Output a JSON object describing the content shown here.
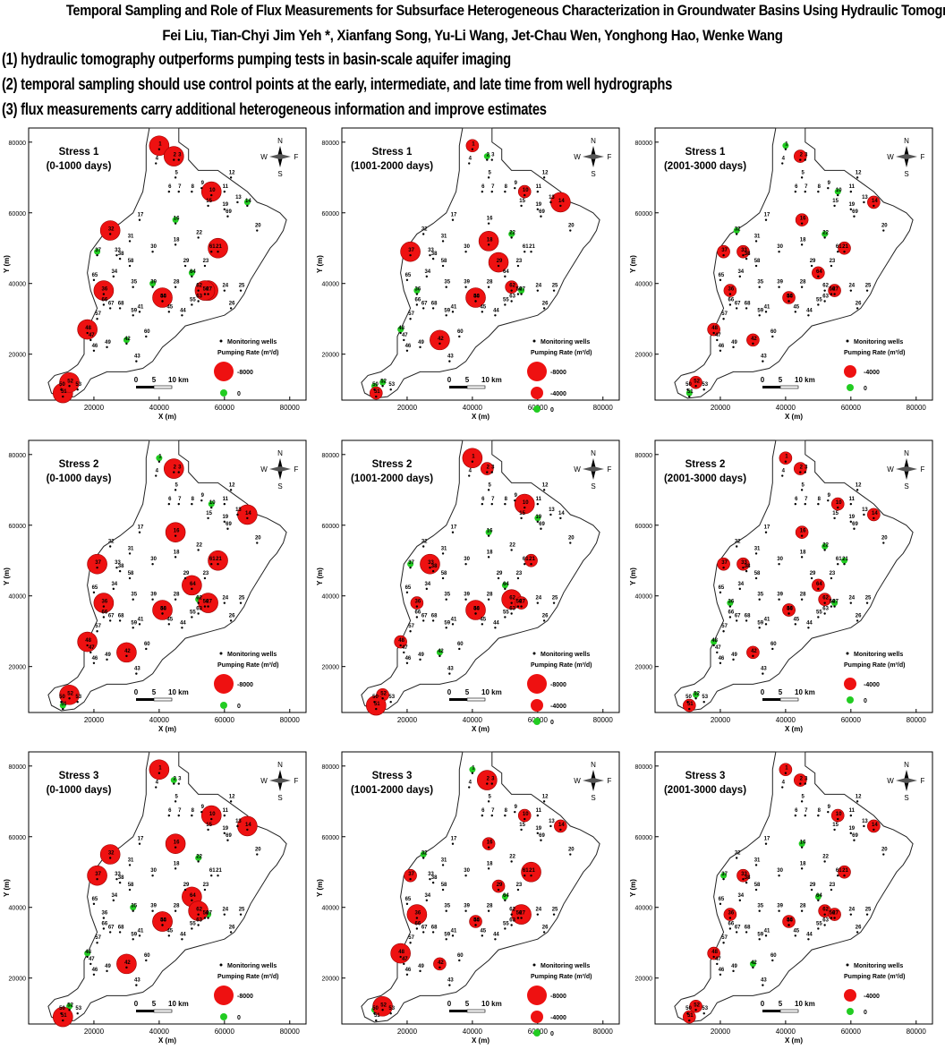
{
  "header": {
    "title": "Temporal Sampling and Role of Flux Measurements for Subsurface Heterogeneous Characterization in Groundwater Basins Using Hydraulic Tomography",
    "authors": "Fei Liu, Tian-Chyi Jim Yeh *, Xianfang Song, Yu-Li Wang, Jet-Chau Wen, Yonghong Hao, Wenke Wang",
    "highlights": [
      "(1) hydraulic tomography outperforms pumping tests in basin-scale aquifer imaging",
      "(2) temporal sampling should use control points at the early, intermediate, and late time from well hydrographs",
      "(3) flux measurements carry additional heterogeneous information and improve estimates"
    ]
  },
  "axes": {
    "x_label": "X (m)",
    "y_label": "Y (m)",
    "x_ticks": [
      "20000",
      "40000",
      "60000",
      "80000"
    ],
    "y_ticks": [
      "20000",
      "40000",
      "60000",
      "80000"
    ],
    "x_tick_values": [
      20000,
      40000,
      60000,
      80000
    ],
    "y_tick_values": [
      20000,
      40000,
      60000,
      80000
    ],
    "x_range": [
      0,
      85000
    ],
    "y_range": [
      7000,
      84000
    ]
  },
  "compass": {
    "n": "N",
    "s": "S",
    "w": "W",
    "e": "F"
  },
  "scalebar": {
    "labels": [
      "0",
      "5",
      "10 km"
    ]
  },
  "legend": {
    "monitoring": "Monitoring wells",
    "pumping": "Pumping Rate (m³/d)",
    "value_large": "-8000",
    "value_medium": "-4000",
    "value_zero": "0"
  },
  "wells": [
    {
      "id": "1",
      "x": 40000,
      "y": 79000
    },
    {
      "id": "2",
      "x": 44500,
      "y": 76000
    },
    {
      "id": "3",
      "x": 46000,
      "y": 76000
    },
    {
      "id": "4",
      "x": 39000,
      "y": 75000
    },
    {
      "id": "5",
      "x": 45000,
      "y": 71000
    },
    {
      "id": "6",
      "x": 43000,
      "y": 67000
    },
    {
      "id": "7",
      "x": 46000,
      "y": 67000
    },
    {
      "id": "8",
      "x": 50000,
      "y": 67000
    },
    {
      "id": "9",
      "x": 53000,
      "y": 68000
    },
    {
      "id": "10",
      "x": 56000,
      "y": 66000
    },
    {
      "id": "11",
      "x": 60000,
      "y": 67000
    },
    {
      "id": "12",
      "x": 62000,
      "y": 71000
    },
    {
      "id": "13",
      "x": 64000,
      "y": 64000
    },
    {
      "id": "14",
      "x": 67000,
      "y": 63000
    },
    {
      "id": "15",
      "x": 55000,
      "y": 63000
    },
    {
      "id": "16",
      "x": 45000,
      "y": 58000
    },
    {
      "id": "17",
      "x": 34000,
      "y": 59000
    },
    {
      "id": "18",
      "x": 45000,
      "y": 52000
    },
    {
      "id": "19",
      "x": 60000,
      "y": 62000
    },
    {
      "id": "20",
      "x": 70000,
      "y": 56000
    },
    {
      "id": "21",
      "x": 58000,
      "y": 50000
    },
    {
      "id": "22",
      "x": 52000,
      "y": 54000
    },
    {
      "id": "23",
      "x": 54000,
      "y": 46000
    },
    {
      "id": "24",
      "x": 60000,
      "y": 39000
    },
    {
      "id": "25",
      "x": 65000,
      "y": 39000
    },
    {
      "id": "26",
      "x": 62000,
      "y": 34000
    },
    {
      "id": "27",
      "x": 55000,
      "y": 38000
    },
    {
      "id": "28",
      "x": 45000,
      "y": 40000
    },
    {
      "id": "29",
      "x": 48000,
      "y": 46000
    },
    {
      "id": "30",
      "x": 38000,
      "y": 50000
    },
    {
      "id": "31",
      "x": 31000,
      "y": 53000
    },
    {
      "id": "32",
      "x": 25000,
      "y": 55000
    },
    {
      "id": "33",
      "x": 27000,
      "y": 49000
    },
    {
      "id": "34",
      "x": 26000,
      "y": 43000
    },
    {
      "id": "35",
      "x": 32000,
      "y": 40000
    },
    {
      "id": "36",
      "x": 23000,
      "y": 38000
    },
    {
      "id": "37",
      "x": 21000,
      "y": 49000
    },
    {
      "id": "38",
      "x": 28000,
      "y": 48000
    },
    {
      "id": "39",
      "x": 38000,
      "y": 40000
    },
    {
      "id": "40",
      "x": 41000,
      "y": 36000
    },
    {
      "id": "41",
      "x": 34000,
      "y": 33000
    },
    {
      "id": "42",
      "x": 30000,
      "y": 24000
    },
    {
      "id": "43",
      "x": 33000,
      "y": 19000
    },
    {
      "id": "44",
      "x": 47000,
      "y": 32000
    },
    {
      "id": "45",
      "x": 43000,
      "y": 33000
    },
    {
      "id": "46",
      "x": 20000,
      "y": 22000
    },
    {
      "id": "47",
      "x": 19000,
      "y": 25000
    },
    {
      "id": "48",
      "x": 18000,
      "y": 27000
    },
    {
      "id": "49",
      "x": 24000,
      "y": 23000
    },
    {
      "id": "50",
      "x": 10000,
      "y": 11000
    },
    {
      "id": "51",
      "x": 10500,
      "y": 9000
    },
    {
      "id": "52",
      "x": 12500,
      "y": 12000
    },
    {
      "id": "53",
      "x": 15000,
      "y": 11000
    },
    {
      "id": "54",
      "x": 41000,
      "y": 36000
    },
    {
      "id": "55",
      "x": 50000,
      "y": 35000
    },
    {
      "id": "56",
      "x": 54000,
      "y": 38000
    },
    {
      "id": "57",
      "x": 21000,
      "y": 31000
    },
    {
      "id": "58",
      "x": 31000,
      "y": 46000
    },
    {
      "id": "59",
      "x": 32000,
      "y": 32000
    },
    {
      "id": "60",
      "x": 36000,
      "y": 26000
    },
    {
      "id": "61",
      "x": 56000,
      "y": 50000
    },
    {
      "id": "62",
      "x": 52000,
      "y": 39000
    },
    {
      "id": "63",
      "x": 52000,
      "y": 36000
    },
    {
      "id": "64",
      "x": 50000,
      "y": 43000
    },
    {
      "id": "65",
      "x": 20000,
      "y": 42000
    },
    {
      "id": "66",
      "x": 23000,
      "y": 35000
    },
    {
      "id": "67",
      "x": 25000,
      "y": 34000
    },
    {
      "id": "68",
      "x": 28000,
      "y": 34000
    },
    {
      "id": "69",
      "x": 61000,
      "y": 60000
    }
  ],
  "maps": [
    {
      "stress": "Stress 1",
      "period": "(0-1000 days)",
      "legend_values": [
        "-8000",
        "0"
      ],
      "pumps": [
        [
          1,
          -8000
        ],
        [
          2,
          -8000
        ],
        [
          10,
          -8000
        ],
        [
          32,
          -8000
        ],
        [
          21,
          -8000
        ],
        [
          36,
          -8000
        ],
        [
          40,
          -8000
        ],
        [
          27,
          -8000
        ],
        [
          56,
          -8000
        ],
        [
          51,
          -8000
        ],
        [
          52,
          -8000
        ],
        [
          48,
          -8000
        ]
      ],
      "zeros": [
        16,
        14,
        39,
        64,
        37,
        42,
        54
      ]
    },
    {
      "stress": "Stress 1",
      "period": "(1001-2000 days)",
      "legend_values": [
        "-8000",
        "-4000",
        "0"
      ],
      "pumps": [
        [
          1,
          -4000
        ],
        [
          10,
          -4000
        ],
        [
          18,
          -8000
        ],
        [
          14,
          -8000
        ],
        [
          29,
          -8000
        ],
        [
          37,
          -8000
        ],
        [
          40,
          -8000
        ],
        [
          62,
          -4000
        ],
        [
          42,
          -8000
        ],
        [
          51,
          -4000
        ]
      ],
      "zeros": [
        2,
        22,
        36,
        27,
        48,
        50,
        52
      ]
    },
    {
      "stress": "Stress 1",
      "period": "(2001-3000 days)",
      "legend_values": [
        "-4000",
        "0"
      ],
      "pumps": [
        [
          2,
          -4000
        ],
        [
          16,
          -4000
        ],
        [
          14,
          -4000
        ],
        [
          33,
          -4000
        ],
        [
          37,
          -4000
        ],
        [
          64,
          -4000
        ],
        [
          36,
          -4000
        ],
        [
          21,
          -4000
        ],
        [
          40,
          -4000
        ],
        [
          27,
          -4000
        ],
        [
          48,
          -4000
        ],
        [
          42,
          -4000
        ],
        [
          52,
          -4000
        ]
      ],
      "zeros": [
        1,
        10,
        32,
        22,
        54,
        51
      ]
    },
    {
      "stress": "Stress 2",
      "period": "(0-1000 days)",
      "legend_values": [
        "-8000",
        "0"
      ],
      "pumps": [
        [
          2,
          -8000
        ],
        [
          16,
          -8000
        ],
        [
          14,
          -8000
        ],
        [
          37,
          -8000
        ],
        [
          21,
          -8000
        ],
        [
          64,
          -8000
        ],
        [
          36,
          -8000
        ],
        [
          40,
          -8000
        ],
        [
          27,
          -8000
        ],
        [
          48,
          -8000
        ],
        [
          42,
          -8000
        ],
        [
          52,
          -8000
        ]
      ],
      "zeros": [
        1,
        10,
        62,
        54,
        51
      ]
    },
    {
      "stress": "Stress 2",
      "period": "(1001-2000 days)",
      "legend_values": [
        "-8000",
        "-4000",
        "0"
      ],
      "pumps": [
        [
          1,
          -8000
        ],
        [
          2,
          -4000
        ],
        [
          10,
          -8000
        ],
        [
          33,
          -8000
        ],
        [
          21,
          -4000
        ],
        [
          62,
          -8000
        ],
        [
          36,
          -4000
        ],
        [
          27,
          -4000
        ],
        [
          40,
          -8000
        ],
        [
          48,
          -4000
        ],
        [
          52,
          -4000
        ],
        [
          51,
          -8000
        ]
      ],
      "zeros": [
        16,
        19,
        64,
        37,
        54,
        42
      ]
    },
    {
      "stress": "Stress 2",
      "period": "(2001-3000 days)",
      "legend_values": [
        "-4000",
        "0"
      ],
      "pumps": [
        [
          1,
          -4000
        ],
        [
          2,
          -4000
        ],
        [
          10,
          -4000
        ],
        [
          16,
          -4000
        ],
        [
          14,
          -4000
        ],
        [
          33,
          -4000
        ],
        [
          37,
          -4000
        ],
        [
          64,
          -4000
        ],
        [
          62,
          -4000
        ],
        [
          40,
          -4000
        ],
        [
          54,
          -4000
        ],
        [
          42,
          -4000
        ],
        [
          51,
          -4000
        ]
      ],
      "zeros": [
        22,
        21,
        27,
        36,
        48,
        52
      ]
    },
    {
      "stress": "Stress 3",
      "period": "(0-1000 days)",
      "legend_values": [
        "-8000",
        "0"
      ],
      "pumps": [
        [
          1,
          -8000
        ],
        [
          10,
          -8000
        ],
        [
          14,
          -8000
        ],
        [
          16,
          -8000
        ],
        [
          32,
          -8000
        ],
        [
          37,
          -8000
        ],
        [
          64,
          -8000
        ],
        [
          62,
          -8000
        ],
        [
          40,
          -8000
        ],
        [
          54,
          -8000
        ],
        [
          42,
          -8000
        ],
        [
          51,
          -8000
        ]
      ],
      "zeros": [
        2,
        22,
        35,
        27,
        48,
        52
      ]
    },
    {
      "stress": "Stress 3",
      "period": "(1001-2000 days)",
      "legend_values": [
        "-8000",
        "-4000",
        "0"
      ],
      "pumps": [
        [
          2,
          -8000
        ],
        [
          10,
          -4000
        ],
        [
          16,
          -4000
        ],
        [
          14,
          -4000
        ],
        [
          21,
          -8000
        ],
        [
          37,
          -4000
        ],
        [
          29,
          -4000
        ],
        [
          36,
          -8000
        ],
        [
          40,
          -4000
        ],
        [
          27,
          -8000
        ],
        [
          48,
          -8000
        ],
        [
          42,
          -4000
        ],
        [
          52,
          -8000
        ]
      ],
      "zeros": [
        1,
        32,
        64,
        54,
        50
      ]
    },
    {
      "stress": "Stress 3",
      "period": "(2001-3000 days)",
      "legend_values": [
        "-4000",
        "0"
      ],
      "pumps": [
        [
          1,
          -4000
        ],
        [
          2,
          -4000
        ],
        [
          10,
          -4000
        ],
        [
          14,
          -4000
        ],
        [
          21,
          -4000
        ],
        [
          33,
          -4000
        ],
        [
          36,
          -4000
        ],
        [
          62,
          -4000
        ],
        [
          54,
          -4000
        ],
        [
          27,
          -4000
        ],
        [
          48,
          -4000
        ],
        [
          52,
          -4000
        ],
        [
          51,
          -4000
        ]
      ],
      "zeros": [
        16,
        37,
        64,
        40,
        42
      ]
    }
  ]
}
